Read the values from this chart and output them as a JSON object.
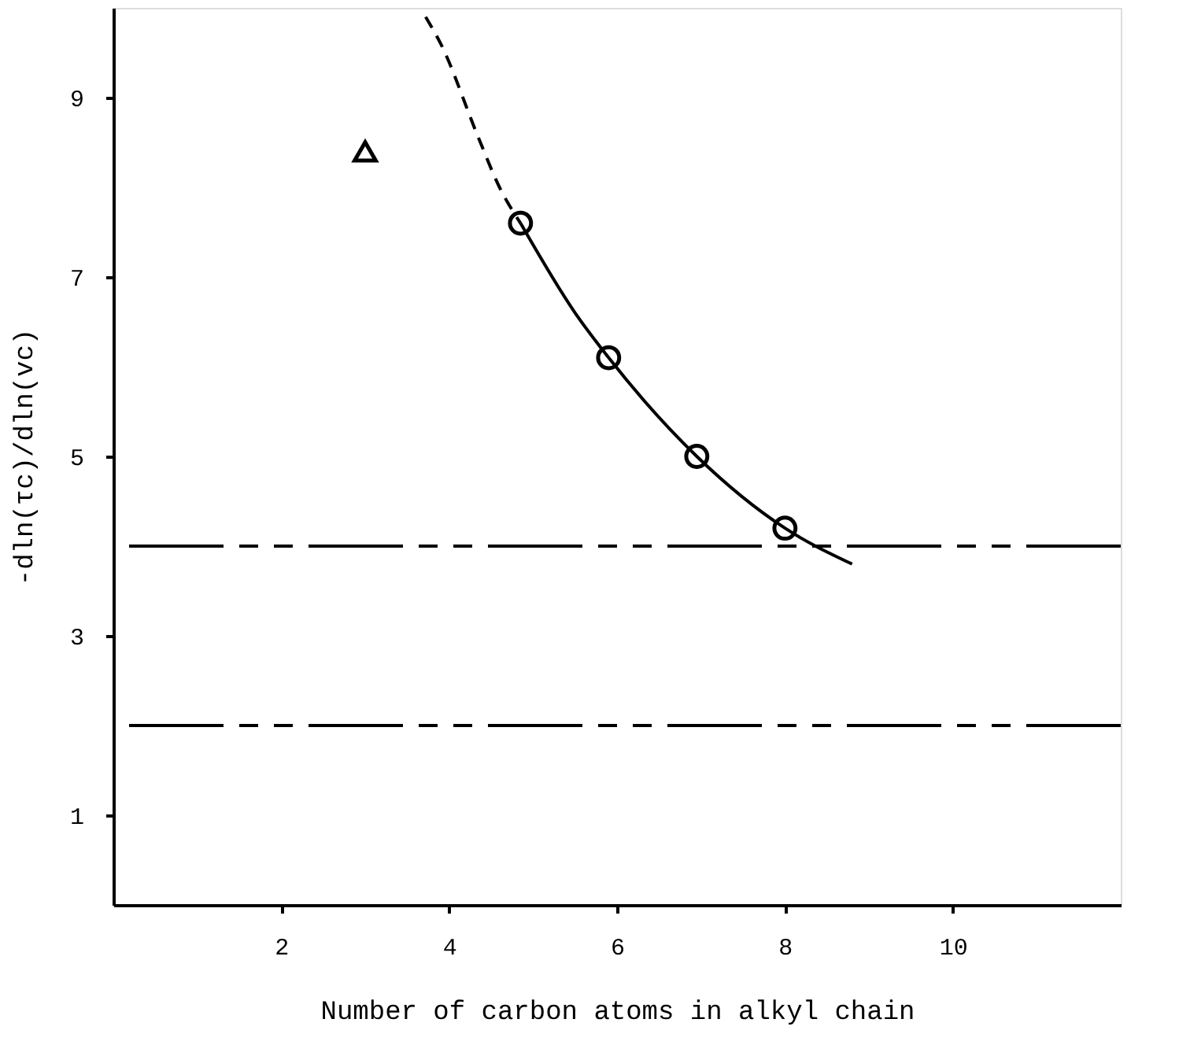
{
  "chart_data": {
    "type": "scatter",
    "xlabel": "Number of carbon atoms in alkyl chain",
    "ylabel": "-dln(τc)/dln(vc)",
    "xlim": [
      0,
      12
    ],
    "xticks": [
      2,
      4,
      6,
      8,
      10
    ],
    "ylim": [
      0,
      10
    ],
    "yticks": [
      1,
      3,
      5,
      7,
      9
    ],
    "grid": false,
    "series": [
      {
        "marker": "triangle",
        "color": "#000000",
        "x": [
          3
        ],
        "values": [
          8.4
        ]
      },
      {
        "marker": "circle",
        "color": "#000000",
        "x": [
          4.85,
          5.9,
          6.95,
          8.0
        ],
        "values": [
          7.6,
          6.1,
          5.0,
          4.2
        ]
      },
      {
        "type": "line",
        "line_style": "solid",
        "color": "#000000",
        "x": [
          4.85,
          5.5,
          5.9,
          6.95,
          8.0,
          8.8
        ],
        "values": [
          7.6,
          6.6,
          6.1,
          5.0,
          4.2,
          3.8
        ]
      },
      {
        "type": "line",
        "line_style": "dashed",
        "color": "#000000",
        "x": [
          3.72,
          3.9,
          4.35,
          4.6,
          4.85
        ],
        "values": [
          9.9,
          9.6,
          8.55,
          8.0,
          7.6
        ]
      }
    ],
    "ref_lines": [
      {
        "axis": "y",
        "value": 4,
        "line_style": "dashed",
        "color": "#000000"
      },
      {
        "axis": "y",
        "value": 2,
        "line_style": "dashed",
        "color": "#000000"
      }
    ]
  }
}
